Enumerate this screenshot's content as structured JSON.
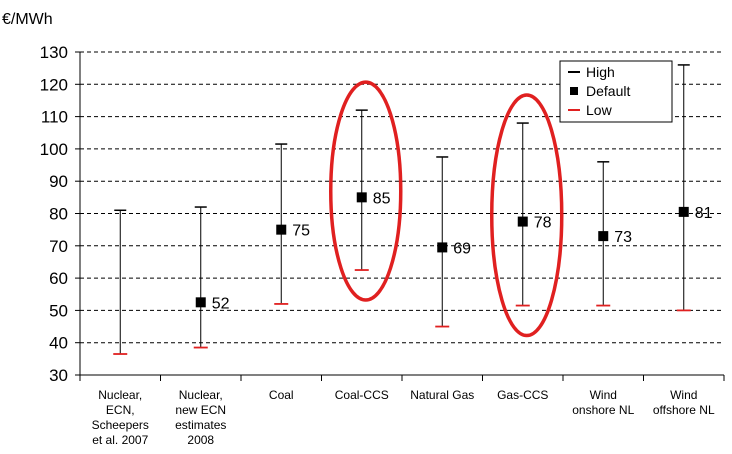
{
  "chart_data": {
    "type": "scatter",
    "unit_label": "€/MWh",
    "title": "",
    "xlabel": "",
    "ylabel": "",
    "ylim": [
      30,
      130
    ],
    "yticks": [
      30,
      40,
      50,
      60,
      70,
      80,
      90,
      100,
      110,
      120,
      130
    ],
    "grid": "horizontal dashed",
    "legend_position": "top-right",
    "legend": [
      {
        "name": "High",
        "color": "#000000",
        "marker": "dash"
      },
      {
        "name": "Default",
        "color": "#000000",
        "marker": "square"
      },
      {
        "name": "Low",
        "color": "#e02020",
        "marker": "dash"
      }
    ],
    "categories": [
      [
        "Nuclear,",
        "ECN,",
        "Scheepers",
        "et al. 2007"
      ],
      [
        "Nuclear,",
        "new ECN",
        "estimates",
        "2008"
      ],
      [
        "Coal"
      ],
      [
        "Coal-CCS"
      ],
      [
        "Natural Gas"
      ],
      [
        "Gas-CCS"
      ],
      [
        "Wind",
        "onshore NL"
      ],
      [
        "Wind",
        "offshore NL"
      ]
    ],
    "high": [
      81,
      82,
      101.5,
      112,
      97.5,
      108,
      96,
      126
    ],
    "default": [
      null,
      52.5,
      75,
      85,
      69.5,
      77.5,
      73,
      80.5
    ],
    "default_labels": [
      "",
      "52",
      "75",
      "85",
      "69",
      "78",
      "73",
      "81"
    ],
    "low": [
      36.5,
      38.5,
      52,
      62.5,
      45,
      51.5,
      51.5,
      50
    ],
    "highlighted": [
      "Coal-CCS",
      "Gas-CCS"
    ],
    "highlight_color": "#e02020"
  }
}
